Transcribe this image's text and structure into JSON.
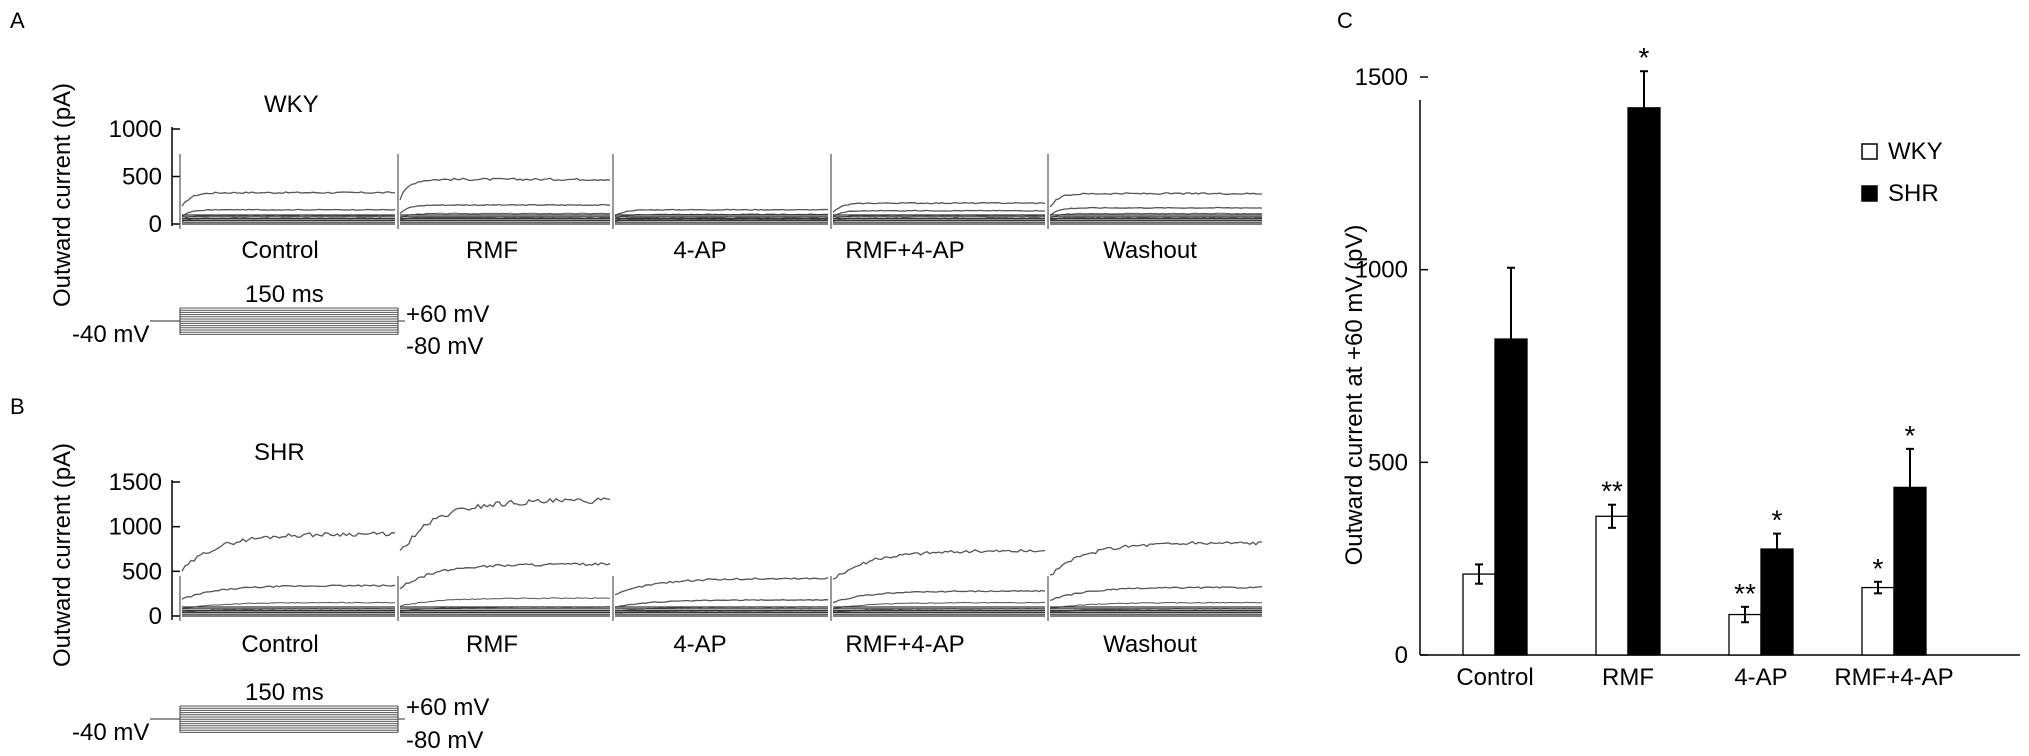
{
  "panels": {
    "a": {
      "letter": "A",
      "group": "WKY",
      "ylabel": "Outward current (pA)",
      "yticks": [
        "1000",
        "500",
        "0"
      ],
      "segments": [
        "Control",
        "RMF",
        "4-AP",
        "RMF+4-AP",
        "Washout"
      ],
      "protocol": {
        "duration": "150 ms",
        "hold": "-40 mV",
        "top": "+60 mV",
        "bottom": "-80 mV"
      }
    },
    "b": {
      "letter": "B",
      "group": "SHR",
      "ylabel": "Outward current (pA)",
      "yticks": [
        "1500",
        "1000",
        "500",
        "0"
      ],
      "segments": [
        "Control",
        "RMF",
        "4-AP",
        "RMF+4-AP",
        "Washout"
      ],
      "protocol": {
        "duration": "150 ms",
        "hold": "-40 mV",
        "top": "+60 mV",
        "bottom": "-80 mV"
      }
    },
    "c": {
      "letter": "C"
    }
  },
  "chart_data": {
    "type": "bar",
    "categories": [
      "Control",
      "RMF",
      "4-AP",
      "RMF+4-AP"
    ],
    "ylabel": "Outward current at +60 mV (pV)",
    "xlabel": "",
    "ylim": [
      0,
      1500
    ],
    "yticks": [
      0,
      500,
      1000,
      1500
    ],
    "legend_position": "top-right",
    "series": [
      {
        "name": "WKY",
        "fill": "#ffffff",
        "values": [
          210,
          360,
          105,
          175
        ],
        "errors": [
          25,
          30,
          20,
          15
        ],
        "marks": [
          "",
          "**",
          "**",
          "*"
        ]
      },
      {
        "name": "SHR",
        "fill": "#000000",
        "values": [
          820,
          1420,
          275,
          435
        ],
        "errors": [
          185,
          95,
          40,
          100
        ],
        "marks": [
          "",
          "*",
          "*",
          "*"
        ]
      }
    ]
  }
}
